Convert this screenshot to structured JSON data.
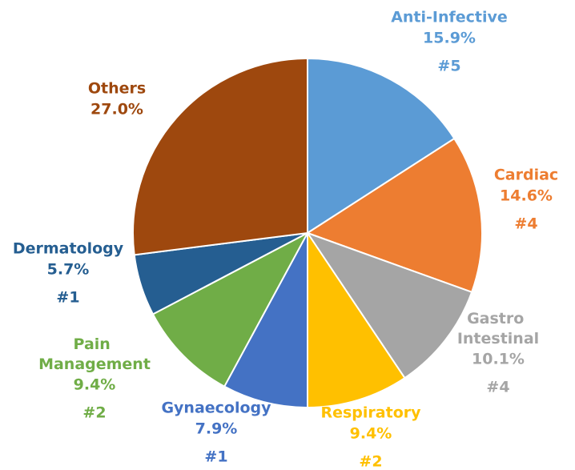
{
  "chart_data": {
    "type": "pie",
    "categories": [
      "Anti-Infective",
      "Cardiac",
      "Gastro Intestinal",
      "Respiratory",
      "Gynaecology",
      "Pain Management",
      "Dermatology",
      "Others"
    ],
    "values": [
      15.9,
      14.6,
      10.1,
      9.4,
      7.9,
      9.4,
      5.7,
      27.0
    ],
    "value_labels": [
      "15.9%",
      "14.6%",
      "10.1%",
      "9.4%",
      "7.9%",
      "9.4%",
      "5.7%",
      "27.0%"
    ],
    "ranks": [
      "#5",
      "#4",
      "#4",
      "#2",
      "#1",
      "#2",
      "#1",
      null
    ],
    "colors": [
      "#5b9bd5",
      "#ed7d31",
      "#a5a5a5",
      "#ffc000",
      "#4472c4",
      "#70ad47",
      "#255e91",
      "#9e480e"
    ]
  }
}
